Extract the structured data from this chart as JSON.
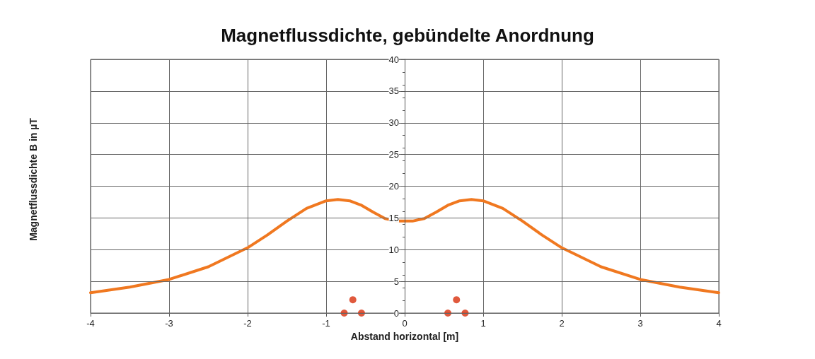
{
  "chart_data": {
    "type": "line",
    "title": "Magnetflussdichte, gebündelte Anordnung",
    "xlabel": "Abstand horizontal [m]",
    "ylabel": "Magnetflussdichte B in µT",
    "xlim": [
      -4,
      4
    ],
    "xticks": [
      -4,
      -3,
      -2,
      -1,
      0,
      1,
      2,
      3,
      4
    ],
    "ylim": [
      0,
      40
    ],
    "yticks": [
      0,
      5,
      10,
      15,
      20,
      25,
      30,
      35,
      40
    ],
    "grid": true,
    "series": [
      {
        "color": "#f07820",
        "marker": "none",
        "line_style": "solid",
        "x": [
          -4,
          -3.5,
          -3,
          -2.5,
          -2,
          -1.75,
          -1.5,
          -1.25,
          -1,
          -0.85,
          -0.7,
          -0.55,
          -0.4,
          -0.25,
          -0.1,
          0,
          0.1,
          0.25,
          0.4,
          0.55,
          0.7,
          0.85,
          1,
          1.25,
          1.5,
          1.75,
          2,
          2.5,
          3,
          3.5,
          4
        ],
        "values": [
          3.2,
          4.1,
          5.3,
          7.3,
          10.3,
          12.3,
          14.5,
          16.5,
          17.7,
          17.9,
          17.7,
          17.0,
          15.9,
          14.9,
          14.5,
          14.5,
          14.5,
          14.9,
          15.9,
          17.0,
          17.7,
          17.9,
          17.7,
          16.5,
          14.5,
          12.3,
          10.3,
          7.3,
          5.3,
          4.1,
          3.2
        ]
      },
      {
        "type": "scatter",
        "color": "#d8300c",
        "marker": "circle",
        "x": [
          -0.77,
          -0.66,
          -0.55,
          0.55,
          0.66,
          0.77
        ],
        "values": [
          0,
          2.1,
          0,
          0,
          2.1,
          0
        ]
      }
    ]
  }
}
